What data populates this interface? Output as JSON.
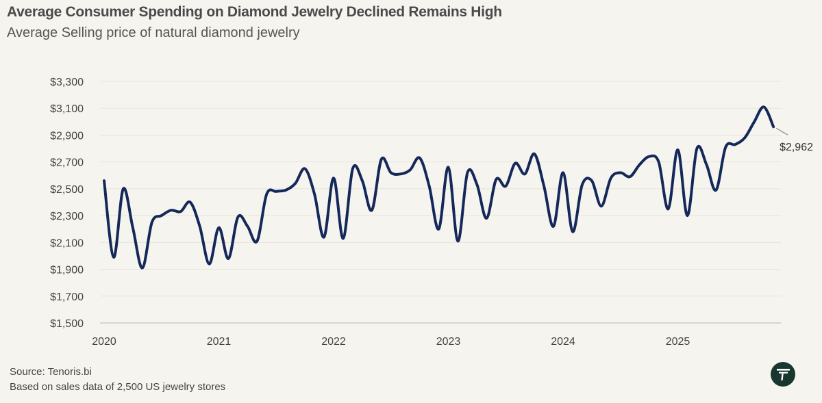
{
  "title": "Average Consumer Spending on Diamond Jewelry Declined  Remains High",
  "subtitle": "Average Selling price of natural diamond jewelry",
  "source": "Source: Tenoris.bi",
  "note": "Based on sales data of 2,500 US jewelry stores",
  "colors": {
    "background": "#f6f4ee",
    "line": "#14285a",
    "grid": "#e6e3da",
    "logo": "#17372f"
  },
  "logo_icon": "tenoris-logo-icon",
  "chart_data": {
    "type": "line",
    "title": "Average Consumer Spending on Diamond Jewelry Declined  Remains High",
    "subtitle": "Average Selling price of natural diamond jewelry",
    "xlabel": "",
    "ylabel": "",
    "ylim": [
      1500,
      3300
    ],
    "yticks": [
      1500,
      1700,
      1900,
      2100,
      2300,
      2500,
      2700,
      2900,
      3100,
      3300
    ],
    "ytick_labels": [
      "$1,500",
      "$1,700",
      "$1,900",
      "$2,100",
      "$2,300",
      "$2,500",
      "$2,700",
      "$2,900",
      "$3,100",
      "$3,300"
    ],
    "xticks": [
      "2020-01",
      "2021-01",
      "2022-01",
      "2023-01",
      "2024-01",
      "2025-01"
    ],
    "xtick_labels": [
      "2020",
      "2021",
      "2022",
      "2023",
      "2024",
      "2025"
    ],
    "grid": true,
    "end_label": "$2,962",
    "series": [
      {
        "x": [
          "2020-01",
          "2020-02",
          "2020-03",
          "2020-04",
          "2020-05",
          "2020-06",
          "2020-07",
          "2020-08",
          "2020-09",
          "2020-10",
          "2020-11",
          "2020-12",
          "2021-01",
          "2021-02",
          "2021-03",
          "2021-04",
          "2021-05",
          "2021-06",
          "2021-07",
          "2021-08",
          "2021-09",
          "2021-10",
          "2021-11",
          "2021-12",
          "2022-01",
          "2022-02",
          "2022-03",
          "2022-04",
          "2022-05",
          "2022-06",
          "2022-07",
          "2022-08",
          "2022-09",
          "2022-10",
          "2022-11",
          "2022-12",
          "2023-01",
          "2023-02",
          "2023-03",
          "2023-04",
          "2023-05",
          "2023-06",
          "2023-07",
          "2023-08",
          "2023-09",
          "2023-10",
          "2023-11",
          "2023-12",
          "2024-01",
          "2024-02",
          "2024-03",
          "2024-04",
          "2024-05",
          "2024-06",
          "2024-07",
          "2024-08",
          "2024-09",
          "2024-10",
          "2024-11",
          "2024-12",
          "2025-01",
          "2025-02",
          "2025-03",
          "2025-04",
          "2025-05",
          "2025-06",
          "2025-07",
          "2025-08",
          "2025-09",
          "2025-10",
          "2025-11"
        ],
        "values": [
          2560,
          1990,
          2500,
          2210,
          1910,
          2250,
          2300,
          2340,
          2330,
          2400,
          2220,
          1940,
          2210,
          1980,
          2290,
          2220,
          2110,
          2460,
          2480,
          2490,
          2540,
          2650,
          2460,
          2140,
          2580,
          2130,
          2650,
          2560,
          2340,
          2720,
          2620,
          2610,
          2640,
          2730,
          2520,
          2200,
          2660,
          2110,
          2620,
          2530,
          2280,
          2570,
          2520,
          2690,
          2610,
          2760,
          2520,
          2220,
          2620,
          2180,
          2530,
          2560,
          2370,
          2580,
          2620,
          2590,
          2680,
          2740,
          2700,
          2350,
          2790,
          2300,
          2800,
          2680,
          2490,
          2810,
          2830,
          2880,
          3000,
          3110,
          2962
        ]
      }
    ]
  }
}
